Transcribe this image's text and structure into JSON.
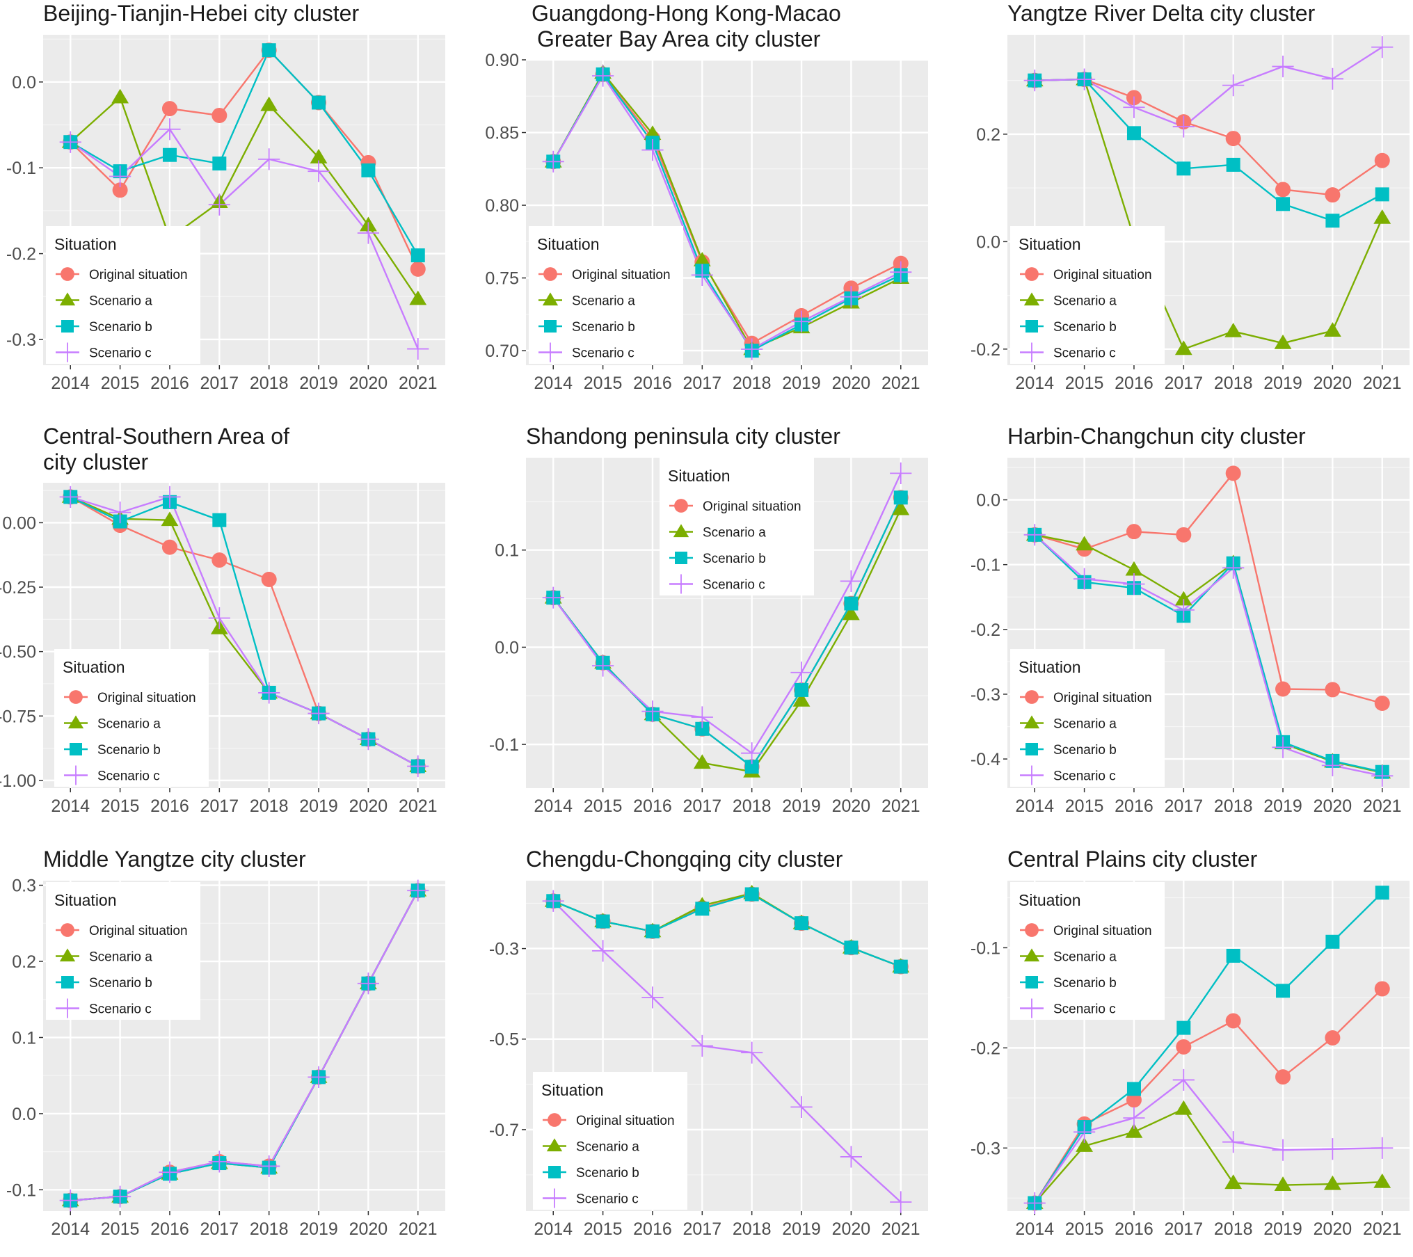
{
  "legend_title": "Situation",
  "series_names": [
    "Original situation",
    "Scenario a",
    "Scenario b",
    "Scenario c"
  ],
  "series_colors": [
    "#F8766D",
    "#7CAE00",
    "#00BFC4",
    "#C77CFF"
  ],
  "panel_background": "#EBEBEB",
  "chart_data": [
    {
      "type": "line",
      "title": [
        "Beijing-Tianjin-Hebei city cluster"
      ],
      "categories": [
        "2014",
        "2015",
        "2016",
        "2017",
        "2018",
        "2019",
        "2020",
        "2021"
      ],
      "ylim": [
        -0.33,
        0.055
      ],
      "yticks": [
        0.0,
        -0.1,
        -0.2,
        -0.3
      ],
      "ytick_labels": [
        "0.0",
        "-0.1",
        "-0.2",
        "-0.3"
      ],
      "legend_position": "bottom-left",
      "series": [
        {
          "name": "Original situation",
          "values": [
            -0.07,
            -0.126,
            -0.031,
            -0.039,
            0.037,
            -0.024,
            -0.094,
            -0.218
          ]
        },
        {
          "name": "Scenario a",
          "values": [
            -0.07,
            -0.018,
            -0.182,
            -0.14,
            -0.027,
            -0.088,
            -0.167,
            -0.253
          ]
        },
        {
          "name": "Scenario b",
          "values": [
            -0.07,
            -0.104,
            -0.085,
            -0.095,
            0.037,
            -0.024,
            -0.103,
            -0.202
          ]
        },
        {
          "name": "Scenario c",
          "values": [
            -0.07,
            -0.11,
            -0.055,
            -0.143,
            -0.09,
            -0.104,
            -0.176,
            -0.311
          ]
        }
      ]
    },
    {
      "type": "line",
      "title": [
        "Guangdong-Hong Kong-Macao",
        "Greater Bay Area city cluster"
      ],
      "categories": [
        "2014",
        "2015",
        "2016",
        "2017",
        "2018",
        "2019",
        "2020",
        "2021"
      ],
      "ylim": [
        0.69,
        0.9
      ],
      "yticks": [
        0.9,
        0.85,
        0.8,
        0.75,
        0.7
      ],
      "ytick_labels": [
        "0.90",
        "0.85",
        "0.80",
        "0.75",
        "0.70"
      ],
      "legend_position": "bottom-left",
      "series": [
        {
          "name": "Original situation",
          "values": [
            0.83,
            0.89,
            0.846,
            0.761,
            0.705,
            0.724,
            0.743,
            0.76
          ]
        },
        {
          "name": "Scenario a",
          "values": [
            0.83,
            0.891,
            0.849,
            0.762,
            0.701,
            0.716,
            0.733,
            0.75
          ]
        },
        {
          "name": "Scenario b",
          "values": [
            0.83,
            0.89,
            0.843,
            0.755,
            0.7,
            0.718,
            0.736,
            0.752
          ]
        },
        {
          "name": "Scenario c",
          "values": [
            0.83,
            0.889,
            0.838,
            0.752,
            0.701,
            0.72,
            0.737,
            0.754
          ]
        }
      ]
    },
    {
      "type": "line",
      "title": [
        "Yangtze River Delta city cluster"
      ],
      "categories": [
        "2014",
        "2015",
        "2016",
        "2017",
        "2018",
        "2019",
        "2020",
        "2021"
      ],
      "ylim": [
        -0.23,
        0.385
      ],
      "yticks": [
        0.2,
        0.0,
        -0.2
      ],
      "ytick_labels": [
        "0.2",
        "0.0",
        "-0.2"
      ],
      "legend_position": "bottom-left",
      "series": [
        {
          "name": "Original situation",
          "values": [
            0.3,
            0.302,
            0.268,
            0.223,
            0.192,
            0.097,
            0.087,
            0.151
          ]
        },
        {
          "name": "Scenario a",
          "values": [
            0.3,
            0.302,
            0.007,
            -0.2,
            -0.167,
            -0.189,
            -0.166,
            0.044
          ]
        },
        {
          "name": "Scenario b",
          "values": [
            0.3,
            0.302,
            0.202,
            0.136,
            0.143,
            0.07,
            0.039,
            0.088
          ]
        },
        {
          "name": "Scenario c",
          "values": [
            0.3,
            0.302,
            0.25,
            0.214,
            0.291,
            0.326,
            0.303,
            0.362
          ]
        }
      ]
    },
    {
      "type": "line",
      "title": [
        "Central-Southern Area of",
        "city cluster"
      ],
      "categories": [
        "2014",
        "2015",
        "2016",
        "2017",
        "2018",
        "2019",
        "2020",
        "2021"
      ],
      "ylim": [
        -1.03,
        0.155
      ],
      "yticks": [
        0.0,
        -0.25,
        -0.5,
        -0.75,
        -1.0
      ],
      "ytick_labels": [
        "0.00",
        "-0.25",
        "-0.50",
        "-0.75",
        "-1.00"
      ],
      "legend_position": "bottom-left",
      "series": [
        {
          "name": "Original situation",
          "values": [
            0.1,
            -0.01,
            -0.095,
            -0.145,
            -0.22,
            -0.74,
            -0.84,
            -0.945
          ]
        },
        {
          "name": "Scenario a",
          "values": [
            0.1,
            0.015,
            0.01,
            -0.41,
            -0.66,
            -0.74,
            -0.84,
            -0.945
          ]
        },
        {
          "name": "Scenario b",
          "values": [
            0.1,
            0.005,
            0.08,
            0.01,
            -0.66,
            -0.74,
            -0.84,
            -0.945
          ]
        },
        {
          "name": "Scenario c",
          "values": [
            0.1,
            0.04,
            0.1,
            -0.37,
            -0.66,
            -0.74,
            -0.84,
            -0.945
          ]
        }
      ]
    },
    {
      "type": "line",
      "title": [
        "Shandong peninsula city cluster"
      ],
      "categories": [
        "2014",
        "2015",
        "2016",
        "2017",
        "2018",
        "2019",
        "2020",
        "2021"
      ],
      "ylim": [
        -0.145,
        0.195
      ],
      "yticks": [
        0.1,
        0.0,
        -0.1
      ],
      "ytick_labels": [
        "0.1",
        "0.0",
        "-0.1"
      ],
      "legend_position": "top-center",
      "series": [
        {
          "name": "Original situation",
          "values": [
            0.051,
            -0.016,
            -0.069,
            -0.084,
            -0.123,
            -0.044,
            0.045,
            0.154
          ]
        },
        {
          "name": "Scenario a",
          "values": [
            0.051,
            -0.016,
            -0.069,
            -0.119,
            -0.128,
            -0.055,
            0.034,
            0.142
          ]
        },
        {
          "name": "Scenario b",
          "values": [
            0.051,
            -0.016,
            -0.069,
            -0.084,
            -0.123,
            -0.044,
            0.045,
            0.154
          ]
        },
        {
          "name": "Scenario c",
          "values": [
            0.051,
            -0.019,
            -0.066,
            -0.072,
            -0.109,
            -0.026,
            0.068,
            0.179
          ]
        }
      ]
    },
    {
      "type": "line",
      "title": [
        "Harbin-Changchun city cluster"
      ],
      "categories": [
        "2014",
        "2015",
        "2016",
        "2017",
        "2018",
        "2019",
        "2020",
        "2021"
      ],
      "ylim": [
        -0.445,
        0.065
      ],
      "yticks": [
        0.0,
        -0.1,
        -0.2,
        -0.3,
        -0.4
      ],
      "ytick_labels": [
        "0.0",
        "-0.1",
        "-0.2",
        "-0.3",
        "-0.4"
      ],
      "legend_position": "bottom-left",
      "series": [
        {
          "name": "Original situation",
          "values": [
            -0.054,
            -0.076,
            -0.049,
            -0.054,
            0.041,
            -0.292,
            -0.293,
            -0.314
          ]
        },
        {
          "name": "Scenario a",
          "values": [
            -0.054,
            -0.069,
            -0.108,
            -0.154,
            -0.098,
            -0.376,
            -0.404,
            -0.421
          ]
        },
        {
          "name": "Scenario b",
          "values": [
            -0.054,
            -0.127,
            -0.136,
            -0.179,
            -0.098,
            -0.374,
            -0.403,
            -0.42
          ]
        },
        {
          "name": "Scenario c",
          "values": [
            -0.054,
            -0.122,
            -0.13,
            -0.17,
            -0.105,
            -0.382,
            -0.41,
            -0.426
          ]
        }
      ]
    },
    {
      "type": "line",
      "title": [
        "Middle Yangtze city cluster"
      ],
      "categories": [
        "2014",
        "2015",
        "2016",
        "2017",
        "2018",
        "2019",
        "2020",
        "2021"
      ],
      "ylim": [
        -0.128,
        0.306
      ],
      "yticks": [
        0.3,
        0.2,
        0.1,
        0.0,
        -0.1
      ],
      "ytick_labels": [
        "0.3",
        "0.2",
        "0.1",
        "0.0",
        "-0.1"
      ],
      "legend_position": "top-left",
      "series": [
        {
          "name": "Original situation",
          "values": [
            -0.114,
            -0.109,
            -0.077,
            -0.063,
            -0.069,
            0.048,
            0.171,
            0.293
          ]
        },
        {
          "name": "Scenario a",
          "values": [
            -0.114,
            -0.109,
            -0.079,
            -0.065,
            -0.071,
            0.048,
            0.171,
            0.293
          ]
        },
        {
          "name": "Scenario b",
          "values": [
            -0.114,
            -0.109,
            -0.079,
            -0.065,
            -0.071,
            0.048,
            0.171,
            0.293
          ]
        },
        {
          "name": "Scenario c",
          "values": [
            -0.114,
            -0.109,
            -0.077,
            -0.063,
            -0.069,
            0.048,
            0.171,
            0.293
          ]
        }
      ]
    },
    {
      "type": "line",
      "title": [
        "Chengdu-Chongqing city cluster"
      ],
      "categories": [
        "2014",
        "2015",
        "2016",
        "2017",
        "2018",
        "2019",
        "2020",
        "2021"
      ],
      "ylim": [
        -0.88,
        -0.15
      ],
      "yticks": [
        -0.3,
        -0.5,
        -0.7
      ],
      "ytick_labels": [
        "-0.3",
        "-0.5",
        "-0.7"
      ],
      "legend_position": "bottom-left",
      "series": [
        {
          "name": "Original situation",
          "values": [
            -0.195,
            -0.24,
            -0.262,
            -0.21,
            -0.18,
            -0.244,
            -0.298,
            -0.34
          ]
        },
        {
          "name": "Scenario a",
          "values": [
            -0.195,
            -0.24,
            -0.262,
            -0.205,
            -0.178,
            -0.244,
            -0.298,
            -0.34
          ]
        },
        {
          "name": "Scenario b",
          "values": [
            -0.195,
            -0.24,
            -0.262,
            -0.212,
            -0.18,
            -0.244,
            -0.298,
            -0.34
          ]
        },
        {
          "name": "Scenario c",
          "values": [
            -0.195,
            -0.305,
            -0.408,
            -0.515,
            -0.53,
            -0.65,
            -0.76,
            -0.86
          ]
        }
      ]
    },
    {
      "type": "line",
      "title": [
        "Central Plains city cluster"
      ],
      "categories": [
        "2014",
        "2015",
        "2016",
        "2017",
        "2018",
        "2019",
        "2020",
        "2021"
      ],
      "ylim": [
        -0.363,
        -0.033
      ],
      "yticks": [
        -0.1,
        -0.2,
        -0.3
      ],
      "ytick_labels": [
        "-0.1",
        "-0.2",
        "-0.3"
      ],
      "legend_position": "top-left",
      "series": [
        {
          "name": "Original situation",
          "values": [
            -0.355,
            -0.276,
            -0.252,
            -0.199,
            -0.173,
            -0.229,
            -0.19,
            -0.141
          ]
        },
        {
          "name": "Scenario a",
          "values": [
            -0.355,
            -0.298,
            -0.284,
            -0.261,
            -0.335,
            -0.337,
            -0.336,
            -0.334
          ]
        },
        {
          "name": "Scenario b",
          "values": [
            -0.355,
            -0.279,
            -0.241,
            -0.18,
            -0.108,
            -0.143,
            -0.094,
            -0.045
          ]
        },
        {
          "name": "Scenario c",
          "values": [
            -0.355,
            -0.284,
            -0.27,
            -0.232,
            -0.294,
            -0.302,
            -0.301,
            -0.3
          ]
        }
      ]
    }
  ]
}
